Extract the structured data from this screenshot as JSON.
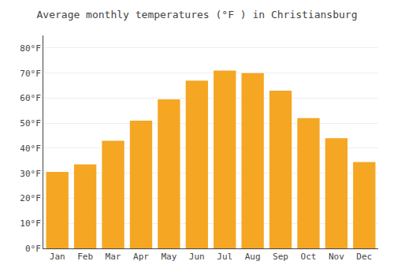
{
  "chart_data": {
    "type": "bar",
    "title": "Average monthly temperatures (°F ) in Christiansburg",
    "categories": [
      "Jan",
      "Feb",
      "Mar",
      "Apr",
      "May",
      "Jun",
      "Jul",
      "Aug",
      "Sep",
      "Oct",
      "Nov",
      "Dec"
    ],
    "values": [
      30.5,
      33.5,
      43,
      51,
      59.5,
      67,
      71,
      70,
      63,
      52,
      44,
      34.5
    ],
    "color": "#F5A623",
    "ylim": [
      0,
      85
    ],
    "yticks": [
      {
        "value": 0,
        "label": "0°F"
      },
      {
        "value": 10,
        "label": "10°F"
      },
      {
        "value": 20,
        "label": "20°F"
      },
      {
        "value": 30,
        "label": "30°F"
      },
      {
        "value": 40,
        "label": "40°F"
      },
      {
        "value": 50,
        "label": "50°F"
      },
      {
        "value": 60,
        "label": "60°F"
      },
      {
        "value": 70,
        "label": "70°F"
      },
      {
        "value": 80,
        "label": "80°F"
      }
    ],
    "grid": true
  }
}
